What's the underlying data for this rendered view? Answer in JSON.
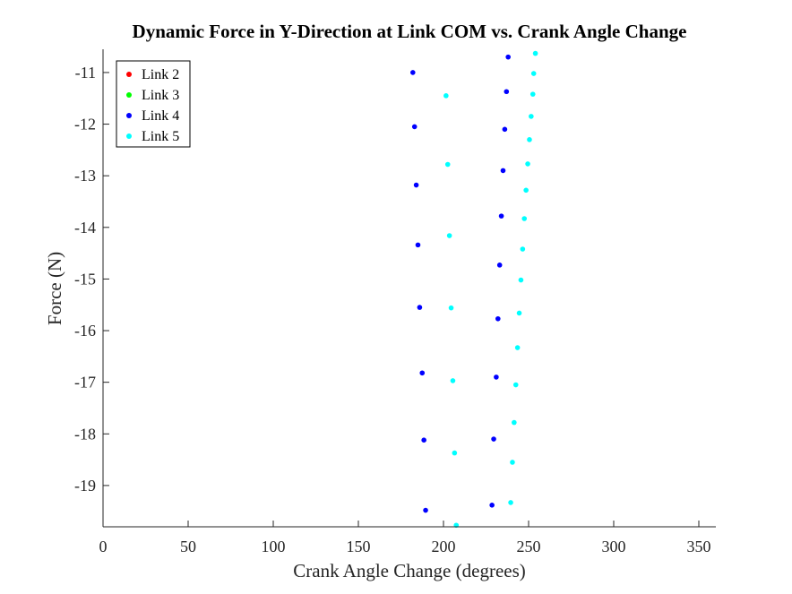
{
  "chart_data": {
    "type": "scatter",
    "title": "Dynamic Force in Y-Direction at Link COM vs. Crank Angle Change",
    "xlabel": "Crank Angle Change (degrees)",
    "ylabel": "Force (N)",
    "xlim": [
      0,
      360
    ],
    "ylim": [
      -19.8,
      -10.55
    ],
    "xticks": [
      0,
      50,
      100,
      150,
      200,
      250,
      300,
      350
    ],
    "yticks": [
      -19,
      -18,
      -17,
      -16,
      -15,
      -14,
      -13,
      -12,
      -11
    ],
    "grid": false,
    "legend_position": "top-left",
    "series": [
      {
        "name": "Link 2",
        "color": "#ff0000",
        "points": []
      },
      {
        "name": "Link 3",
        "color": "#00ff00",
        "points": []
      },
      {
        "name": "Link 4",
        "color": "#0000ff",
        "points": [
          {
            "x": 182,
            "y": -11.0
          },
          {
            "x": 183,
            "y": -12.05
          },
          {
            "x": 184,
            "y": -13.18
          },
          {
            "x": 185,
            "y": -14.34
          },
          {
            "x": 186,
            "y": -15.55
          },
          {
            "x": 187.5,
            "y": -16.82
          },
          {
            "x": 188.5,
            "y": -18.12
          },
          {
            "x": 189.5,
            "y": -19.48
          },
          {
            "x": 238,
            "y": -10.7
          },
          {
            "x": 237,
            "y": -11.37
          },
          {
            "x": 236,
            "y": -12.1
          },
          {
            "x": 235,
            "y": -12.9
          },
          {
            "x": 234,
            "y": -13.78
          },
          {
            "x": 233,
            "y": -14.73
          },
          {
            "x": 232,
            "y": -15.77
          },
          {
            "x": 231,
            "y": -16.9
          },
          {
            "x": 229.5,
            "y": -18.1
          },
          {
            "x": 228.5,
            "y": -19.38
          }
        ]
      },
      {
        "name": "Link 5",
        "color": "#00ffff",
        "points": [
          {
            "x": 201.5,
            "y": -11.45
          },
          {
            "x": 202.5,
            "y": -12.78
          },
          {
            "x": 203.5,
            "y": -14.16
          },
          {
            "x": 204.5,
            "y": -15.56
          },
          {
            "x": 205.5,
            "y": -16.97
          },
          {
            "x": 206.5,
            "y": -18.37
          },
          {
            "x": 207.5,
            "y": -19.77
          },
          {
            "x": 254,
            "y": -10.63
          },
          {
            "x": 253,
            "y": -11.02
          },
          {
            "x": 252.5,
            "y": -11.42
          },
          {
            "x": 251.5,
            "y": -11.85
          },
          {
            "x": 250.5,
            "y": -12.3
          },
          {
            "x": 249.5,
            "y": -12.77
          },
          {
            "x": 248.5,
            "y": -13.28
          },
          {
            "x": 247.5,
            "y": -13.83
          },
          {
            "x": 246.5,
            "y": -14.42
          },
          {
            "x": 245.5,
            "y": -15.02
          },
          {
            "x": 244.5,
            "y": -15.66
          },
          {
            "x": 243.5,
            "y": -16.33
          },
          {
            "x": 242.5,
            "y": -17.05
          },
          {
            "x": 241.5,
            "y": -17.78
          },
          {
            "x": 240.5,
            "y": -18.55
          },
          {
            "x": 239.5,
            "y": -19.33
          }
        ]
      }
    ]
  }
}
